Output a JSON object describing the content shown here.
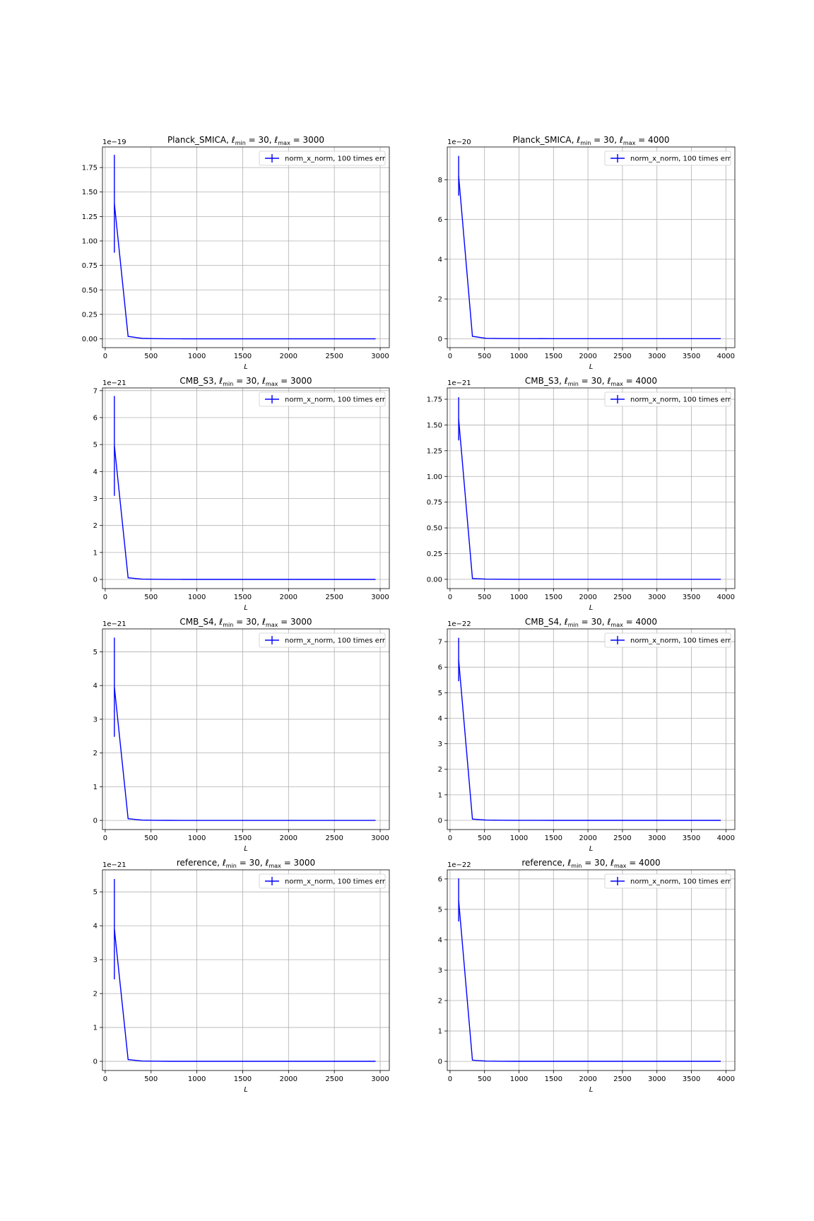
{
  "figure": {
    "background": "#ffffff",
    "line_color": "#0000ff",
    "grid_color": "#b0b0b0"
  },
  "chart_data": [
    {
      "type": "line",
      "id": "p1",
      "title_main": "Planck_SMICA, ",
      "title_math": "ℓ",
      "lmin": "30",
      "lmax": "3000",
      "xlabel": "L",
      "offset": "1e−19",
      "x": [
        100,
        250,
        400,
        550,
        700,
        850,
        1000,
        1500,
        2000,
        2500,
        2950
      ],
      "y": [
        1.38,
        0.025,
        0.005,
        0.002,
        0.001,
        0.0005,
        0.0003,
        0.0001,
        0.0001,
        0.0001,
        0.0001
      ],
      "err": {
        "x": 100,
        "low": 0.88,
        "high": 1.88
      },
      "xlim": [
        -30,
        3100
      ],
      "ylim": [
        -0.09,
        1.96
      ],
      "xticks": [
        0,
        500,
        1000,
        1500,
        2000,
        2500,
        3000
      ],
      "xtick_labels": [
        "0",
        "500",
        "1000",
        "1500",
        "2000",
        "2500",
        "3000"
      ],
      "yticks": [
        0,
        0.25,
        0.5,
        0.75,
        1.0,
        1.25,
        1.5,
        1.75
      ],
      "ytick_labels": [
        "0.00",
        "0.25",
        "0.50",
        "0.75",
        "1.00",
        "1.25",
        "1.50",
        "1.75"
      ],
      "legend": "norm_x_norm, 100 times err",
      "legend_position": "upper right",
      "grid": true
    },
    {
      "type": "line",
      "id": "p2",
      "title_main": "Planck_SMICA, ",
      "title_math": "ℓ",
      "lmin": "30",
      "lmax": "4000",
      "xlabel": "L",
      "offset": "1e−20",
      "x": [
        125,
        325,
        525,
        725,
        925,
        1500,
        2000,
        2500,
        3000,
        3500,
        3925
      ],
      "y": [
        8.2,
        0.12,
        0.02,
        0.01,
        0.005,
        0.002,
        0.002,
        0.002,
        0.002,
        0.002,
        0.002
      ],
      "err": {
        "x": 125,
        "low": 7.2,
        "high": 9.2
      },
      "xlim": [
        -40,
        4130
      ],
      "ylim": [
        -0.45,
        9.65
      ],
      "xticks": [
        0,
        500,
        1000,
        1500,
        2000,
        2500,
        3000,
        3500,
        4000
      ],
      "xtick_labels": [
        "0",
        "500",
        "1000",
        "1500",
        "2000",
        "2500",
        "3000",
        "3500",
        "4000"
      ],
      "yticks": [
        0,
        2,
        4,
        6,
        8
      ],
      "ytick_labels": [
        "0",
        "2",
        "4",
        "6",
        "8"
      ],
      "legend": "norm_x_norm, 100 times err",
      "legend_position": "upper right",
      "grid": true
    },
    {
      "type": "line",
      "id": "p3",
      "title_main": "CMB_S3, ",
      "title_math": "ℓ",
      "lmin": "30",
      "lmax": "3000",
      "xlabel": "L",
      "offset": "1e−21",
      "x": [
        100,
        250,
        400,
        550,
        700,
        850,
        1000,
        1500,
        2000,
        2500,
        2950
      ],
      "y": [
        4.95,
        0.06,
        0.01,
        0.005,
        0.002,
        0.001,
        0.001,
        0.0005,
        0.0005,
        0.0005,
        0.0005
      ],
      "err": {
        "x": 100,
        "low": 3.1,
        "high": 6.8
      },
      "xlim": [
        -30,
        3100
      ],
      "ylim": [
        -0.34,
        7.1
      ],
      "xticks": [
        0,
        500,
        1000,
        1500,
        2000,
        2500,
        3000
      ],
      "xtick_labels": [
        "0",
        "500",
        "1000",
        "1500",
        "2000",
        "2500",
        "3000"
      ],
      "yticks": [
        0,
        1,
        2,
        3,
        4,
        5,
        6,
        7
      ],
      "ytick_labels": [
        "0",
        "1",
        "2",
        "3",
        "4",
        "5",
        "6",
        "7"
      ],
      "legend": "norm_x_norm, 100 times err",
      "legend_position": "upper right",
      "grid": true
    },
    {
      "type": "line",
      "id": "p4",
      "title_main": "CMB_S3, ",
      "title_math": "ℓ",
      "lmin": "30",
      "lmax": "4000",
      "xlabel": "L",
      "offset": "1e−21",
      "x": [
        125,
        325,
        525,
        725,
        925,
        1500,
        2000,
        2500,
        3000,
        3500,
        3925
      ],
      "y": [
        1.56,
        0.008,
        0.002,
        0.001,
        0.0005,
        0.0003,
        0.0003,
        0.0003,
        0.0003,
        0.0003,
        0.0003
      ],
      "err": {
        "x": 125,
        "low": 1.35,
        "high": 1.77
      },
      "xlim": [
        -40,
        4130
      ],
      "ylim": [
        -0.09,
        1.86
      ],
      "xticks": [
        0,
        500,
        1000,
        1500,
        2000,
        2500,
        3000,
        3500,
        4000
      ],
      "xtick_labels": [
        "0",
        "500",
        "1000",
        "1500",
        "2000",
        "2500",
        "3000",
        "3500",
        "4000"
      ],
      "yticks": [
        0,
        0.25,
        0.5,
        0.75,
        1.0,
        1.25,
        1.5,
        1.75
      ],
      "ytick_labels": [
        "0.00",
        "0.25",
        "0.50",
        "0.75",
        "1.00",
        "1.25",
        "1.50",
        "1.75"
      ],
      "legend": "norm_x_norm, 100 times err",
      "legend_position": "upper right",
      "grid": true
    },
    {
      "type": "line",
      "id": "p5",
      "title_main": "CMB_S4, ",
      "title_math": "ℓ",
      "lmin": "30",
      "lmax": "3000",
      "xlabel": "L",
      "offset": "1e−21",
      "x": [
        100,
        250,
        400,
        550,
        700,
        850,
        1000,
        1500,
        2000,
        2500,
        2950
      ],
      "y": [
        3.95,
        0.05,
        0.01,
        0.005,
        0.002,
        0.001,
        0.001,
        0.0005,
        0.0005,
        0.0005,
        0.0005
      ],
      "err": {
        "x": 100,
        "low": 2.48,
        "high": 5.42
      },
      "xlim": [
        -30,
        3100
      ],
      "ylim": [
        -0.27,
        5.68
      ],
      "xticks": [
        0,
        500,
        1000,
        1500,
        2000,
        2500,
        3000
      ],
      "xtick_labels": [
        "0",
        "500",
        "1000",
        "1500",
        "2000",
        "2500",
        "3000"
      ],
      "yticks": [
        0,
        1,
        2,
        3,
        4,
        5
      ],
      "ytick_labels": [
        "0",
        "1",
        "2",
        "3",
        "4",
        "5"
      ],
      "legend": "norm_x_norm, 100 times err",
      "legend_position": "upper right",
      "grid": true
    },
    {
      "type": "line",
      "id": "p6",
      "title_main": "CMB_S4, ",
      "title_math": "ℓ",
      "lmin": "30",
      "lmax": "4000",
      "xlabel": "L",
      "offset": "1e−22",
      "x": [
        125,
        325,
        525,
        725,
        925,
        1500,
        2000,
        2500,
        3000,
        3500,
        3925
      ],
      "y": [
        6.3,
        0.05,
        0.01,
        0.005,
        0.002,
        0.001,
        0.001,
        0.001,
        0.001,
        0.001,
        0.001
      ],
      "err": {
        "x": 125,
        "low": 5.45,
        "high": 7.15
      },
      "xlim": [
        -40,
        4130
      ],
      "ylim": [
        -0.36,
        7.5
      ],
      "xticks": [
        0,
        500,
        1000,
        1500,
        2000,
        2500,
        3000,
        3500,
        4000
      ],
      "xtick_labels": [
        "0",
        "500",
        "1000",
        "1500",
        "2000",
        "2500",
        "3000",
        "3500",
        "4000"
      ],
      "yticks": [
        0,
        1,
        2,
        3,
        4,
        5,
        6,
        7
      ],
      "ytick_labels": [
        "0",
        "1",
        "2",
        "3",
        "4",
        "5",
        "6",
        "7"
      ],
      "legend": "norm_x_norm, 100 times err",
      "legend_position": "upper right",
      "grid": true
    },
    {
      "type": "line",
      "id": "p7",
      "title_main": "reference, ",
      "title_math": "ℓ",
      "lmin": "30",
      "lmax": "3000",
      "xlabel": "L",
      "offset": "1e−21",
      "x": [
        100,
        250,
        400,
        550,
        700,
        850,
        1000,
        1500,
        2000,
        2500,
        2950
      ],
      "y": [
        3.9,
        0.05,
        0.01,
        0.005,
        0.002,
        0.001,
        0.001,
        0.0005,
        0.0005,
        0.0005,
        0.0005
      ],
      "err": {
        "x": 100,
        "low": 2.42,
        "high": 5.38
      },
      "xlim": [
        -30,
        3100
      ],
      "ylim": [
        -0.27,
        5.65
      ],
      "xticks": [
        0,
        500,
        1000,
        1500,
        2000,
        2500,
        3000
      ],
      "xtick_labels": [
        "0",
        "500",
        "1000",
        "1500",
        "2000",
        "2500",
        "3000"
      ],
      "yticks": [
        0,
        1,
        2,
        3,
        4,
        5
      ],
      "ytick_labels": [
        "0",
        "1",
        "2",
        "3",
        "4",
        "5"
      ],
      "legend": "norm_x_norm, 100 times err",
      "legend_position": "upper right",
      "grid": true
    },
    {
      "type": "line",
      "id": "p8",
      "title_main": "reference, ",
      "title_math": "ℓ",
      "lmin": "30",
      "lmax": "4000",
      "xlabel": "L",
      "offset": "1e−22",
      "x": [
        125,
        325,
        525,
        725,
        925,
        1500,
        2000,
        2500,
        3000,
        3500,
        3925
      ],
      "y": [
        5.3,
        0.04,
        0.01,
        0.005,
        0.002,
        0.001,
        0.001,
        0.001,
        0.001,
        0.001,
        0.001
      ],
      "err": {
        "x": 125,
        "low": 4.6,
        "high": 6.02
      },
      "xlim": [
        -40,
        4130
      ],
      "ylim": [
        -0.3,
        6.3
      ],
      "xticks": [
        0,
        500,
        1000,
        1500,
        2000,
        2500,
        3000,
        3500,
        4000
      ],
      "xtick_labels": [
        "0",
        "500",
        "1000",
        "1500",
        "2000",
        "2500",
        "3000",
        "3500",
        "4000"
      ],
      "yticks": [
        0,
        1,
        2,
        3,
        4,
        5,
        6
      ],
      "ytick_labels": [
        "0",
        "1",
        "2",
        "3",
        "4",
        "5",
        "6"
      ],
      "legend": "norm_x_norm, 100 times err",
      "legend_position": "upper right",
      "grid": true
    }
  ]
}
